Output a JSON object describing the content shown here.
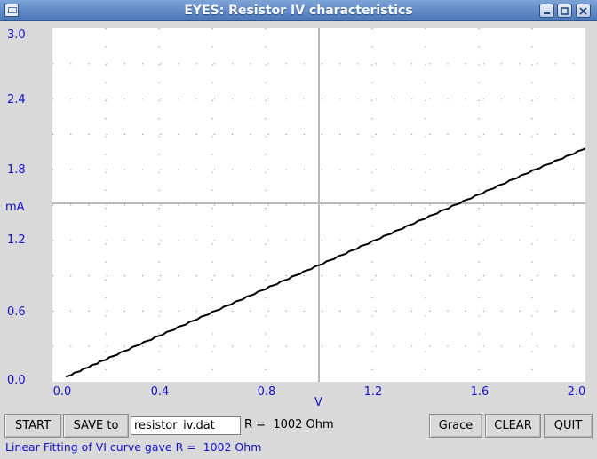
{
  "window": {
    "title": "EYES: Resistor IV characteristics",
    "controls": [
      "minimize-icon",
      "maximize-icon",
      "close-icon"
    ]
  },
  "chart_data": {
    "type": "line",
    "xlabel": "V",
    "ylabel": "mA",
    "xlim": [
      0,
      2.0
    ],
    "ylim": [
      0,
      3.0
    ],
    "x_ticks": [
      "0.0",
      "0.4",
      "0.8",
      "1.2",
      "1.6",
      "2.0"
    ],
    "y_ticks": [
      "0.0",
      "0.6",
      "1.2",
      "1.8",
      "2.4",
      "3.0"
    ],
    "grid": true,
    "series": [
      {
        "x": [
          0.05,
          0.2,
          0.4,
          0.6,
          0.8,
          1.0,
          1.2,
          1.4,
          1.6,
          1.8,
          2.0
        ],
        "y": [
          0.04,
          0.19,
          0.39,
          0.59,
          0.79,
          0.99,
          1.19,
          1.39,
          1.59,
          1.79,
          1.98
        ]
      }
    ],
    "color": "#000000"
  },
  "controls": {
    "start_label": "START",
    "save_label": "SAVE to",
    "filename": "resistor_iv.dat",
    "resistance_text": "R =  1002 Ohm",
    "grace_label": "Grace",
    "clear_label": "CLEAR",
    "quit_label": "QUIT"
  },
  "status": {
    "message": "Linear Fitting of VI curve gave R =  1002 Ohm"
  }
}
